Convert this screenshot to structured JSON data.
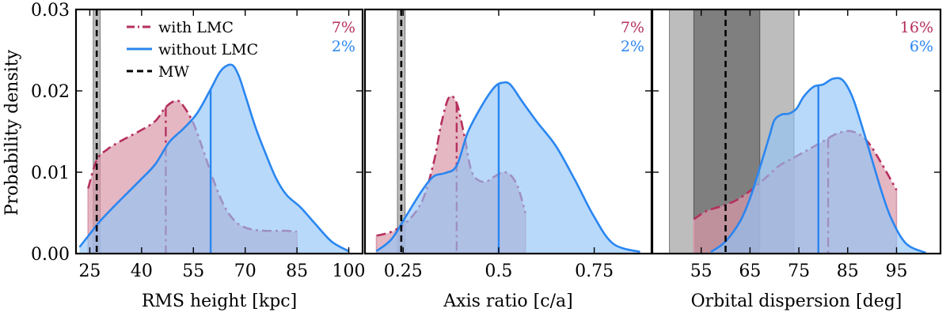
{
  "figure": {
    "ylabel": "Probability density"
  },
  "colors": {
    "with_lmc": "#b5305e",
    "with_lmc_fill": "#d898aa",
    "without_lmc": "#2a86f0",
    "without_lmc_fill": "#92c4f7",
    "mw": "#000000",
    "band_outer": "#bdbdbd",
    "band_inner": "#7f7f7f"
  },
  "legend": {
    "with_lmc": "with LMC",
    "without_lmc": "without LMC",
    "mw": "MW"
  },
  "chart_data": [
    {
      "type": "area",
      "title": "",
      "xlabel": "RMS height [kpc]",
      "ylabel": "Probability density",
      "xlim": [
        21,
        104
      ],
      "ylim": [
        0,
        0.03
      ],
      "xticks": [
        25,
        40,
        55,
        70,
        85,
        100
      ],
      "xtick_labels": [
        "25",
        "40",
        "55",
        "70",
        "85",
        "100"
      ],
      "yticks": [
        0,
        0.01,
        0.02,
        0.03
      ],
      "ytick_labels": [
        "0.00",
        "0.01",
        "0.02",
        "0.03"
      ],
      "percent_labels": {
        "with_lmc": "7%",
        "without_lmc": "2%"
      },
      "mw_value": 27,
      "mw_band": [
        26,
        28
      ],
      "mw_band_inner": null,
      "series": [
        {
          "name": "with LMC",
          "style": "dashdot",
          "x": [
            24.5,
            27,
            30,
            33,
            36,
            40,
            44,
            47,
            50,
            52,
            55,
            58,
            61,
            64,
            67,
            70,
            73,
            76,
            79,
            82,
            85
          ],
          "y": [
            0.008,
            0.0115,
            0.0128,
            0.0136,
            0.0143,
            0.0152,
            0.0163,
            0.018,
            0.0188,
            0.0182,
            0.016,
            0.0125,
            0.0088,
            0.0058,
            0.004,
            0.0032,
            0.0029,
            0.0028,
            0.0028,
            0.0028,
            0.0027
          ],
          "median": 47
        },
        {
          "name": "without LMC",
          "style": "solid",
          "x": [
            22,
            25,
            28,
            32,
            36,
            40,
            44,
            48,
            52,
            56,
            60,
            63,
            66,
            68,
            70,
            73,
            76,
            79,
            82,
            86,
            90,
            95,
            100
          ],
          "y": [
            0.0008,
            0.0024,
            0.004,
            0.0058,
            0.0075,
            0.0092,
            0.011,
            0.0137,
            0.0153,
            0.0172,
            0.0202,
            0.0225,
            0.0232,
            0.022,
            0.0195,
            0.0155,
            0.0122,
            0.0092,
            0.0072,
            0.0057,
            0.0038,
            0.0015,
            0.0003
          ],
          "median": 60
        }
      ]
    },
    {
      "type": "area",
      "title": "",
      "xlabel": "Axis ratio [c/a]",
      "ylabel": "",
      "xlim": [
        0.15,
        0.9
      ],
      "ylim": [
        0,
        0.03
      ],
      "xticks": [
        0.25,
        0.5,
        0.75
      ],
      "xtick_labels": [
        "0.25",
        "0.5",
        "0.75"
      ],
      "yticks": [
        0,
        0.01,
        0.02,
        0.03
      ],
      "ytick_labels": [
        "",
        "",
        "",
        ""
      ],
      "percent_labels": {
        "with_lmc": "7%",
        "without_lmc": "2%"
      },
      "mw_value": 0.245,
      "mw_band": [
        0.235,
        0.255
      ],
      "mw_band_inner": null,
      "series": [
        {
          "name": "with LMC",
          "style": "dashdot",
          "x": [
            0.18,
            0.22,
            0.26,
            0.3,
            0.33,
            0.35,
            0.37,
            0.39,
            0.41,
            0.43,
            0.46,
            0.49,
            0.51,
            0.53,
            0.55,
            0.57
          ],
          "y": [
            0.0022,
            0.0027,
            0.0039,
            0.0065,
            0.0112,
            0.016,
            0.0192,
            0.0185,
            0.0145,
            0.01,
            0.0088,
            0.0095,
            0.01,
            0.0097,
            0.0082,
            0.005
          ],
          "median": 0.39
        },
        {
          "name": "without LMC",
          "style": "solid",
          "x": [
            0.18,
            0.22,
            0.26,
            0.3,
            0.33,
            0.36,
            0.39,
            0.42,
            0.46,
            0.49,
            0.51,
            0.53,
            0.56,
            0.6,
            0.65,
            0.7,
            0.75,
            0.8,
            0.87
          ],
          "y": [
            0.0003,
            0.0018,
            0.0048,
            0.0078,
            0.0095,
            0.0099,
            0.0108,
            0.015,
            0.0185,
            0.0205,
            0.021,
            0.0208,
            0.0188,
            0.0162,
            0.0132,
            0.009,
            0.0045,
            0.0012,
            0.0002
          ],
          "median": 0.5
        }
      ]
    },
    {
      "type": "area",
      "title": "",
      "xlabel": "Orbital dispersion [deg]",
      "ylabel": "",
      "xlim": [
        45,
        104
      ],
      "ylim": [
        0,
        0.03
      ],
      "xticks": [
        55,
        65,
        75,
        85,
        95
      ],
      "xtick_labels": [
        "55",
        "65",
        "75",
        "85",
        "95"
      ],
      "yticks": [
        0,
        0.01,
        0.02,
        0.03
      ],
      "ytick_labels": [
        "",
        "",
        "",
        ""
      ],
      "percent_labels": {
        "with_lmc": "16%",
        "without_lmc": "6%"
      },
      "mw_value": 60,
      "mw_band": [
        48.5,
        74
      ],
      "mw_band_inner": [
        53.5,
        67
      ],
      "series": [
        {
          "name": "with LMC",
          "style": "dashdot",
          "x": [
            53.5,
            56,
            59,
            62,
            65,
            68,
            71,
            74,
            77,
            80,
            83,
            86,
            89,
            92,
            95
          ],
          "y": [
            0.0042,
            0.0052,
            0.0058,
            0.0065,
            0.0077,
            0.0092,
            0.0108,
            0.0118,
            0.0128,
            0.0138,
            0.0148,
            0.015,
            0.0138,
            0.011,
            0.0078
          ],
          "median": 81
        },
        {
          "name": "without LMC",
          "style": "solid",
          "x": [
            57,
            60,
            63,
            65,
            67,
            69,
            70,
            71.5,
            73,
            74.5,
            76,
            78,
            80,
            82,
            84,
            86,
            88,
            90,
            92,
            94,
            97,
            101
          ],
          "y": [
            0.0002,
            0.0015,
            0.004,
            0.0068,
            0.0105,
            0.0145,
            0.0164,
            0.0171,
            0.0172,
            0.0178,
            0.0193,
            0.0205,
            0.0208,
            0.0215,
            0.0213,
            0.0192,
            0.0155,
            0.0115,
            0.0075,
            0.0042,
            0.0012,
            0.0001
          ],
          "median": 79
        }
      ]
    }
  ]
}
